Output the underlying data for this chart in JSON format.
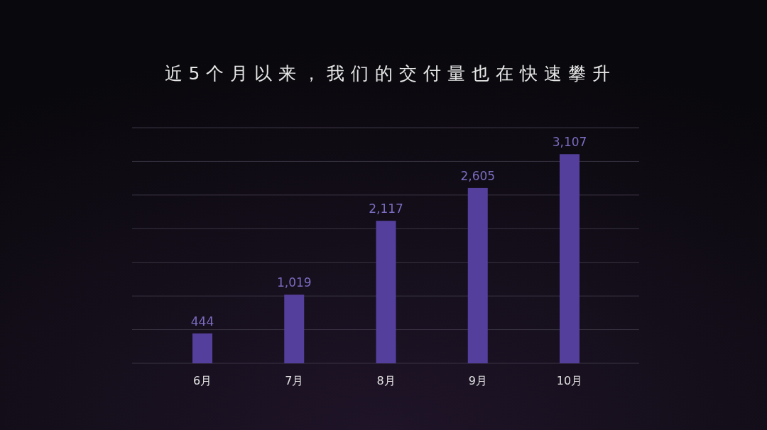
{
  "chart_data": {
    "type": "bar",
    "title": "近5个月以来，我们的交付量也在快速攀升",
    "categories": [
      "6月",
      "7月",
      "8月",
      "9月",
      "10月"
    ],
    "values": [
      444,
      1019,
      2117,
      2605,
      3107
    ],
    "value_labels": [
      "444",
      "1,019",
      "2,117",
      "2,605",
      "3,107"
    ],
    "color": "#553f9c",
    "ylim": [
      0,
      3500
    ],
    "yticks": [
      {
        "value": 0,
        "label": null
      },
      {
        "value": 500,
        "label": null
      },
      {
        "value": 1000,
        "label": null
      },
      {
        "value": 1500,
        "label": null
      },
      {
        "value": 2000,
        "label": null
      },
      {
        "value": 2500,
        "label": null
      },
      {
        "value": 3000,
        "label": null
      },
      {
        "value": 3500,
        "label": null
      }
    ],
    "grid": "y",
    "tick_labels": "x"
  }
}
